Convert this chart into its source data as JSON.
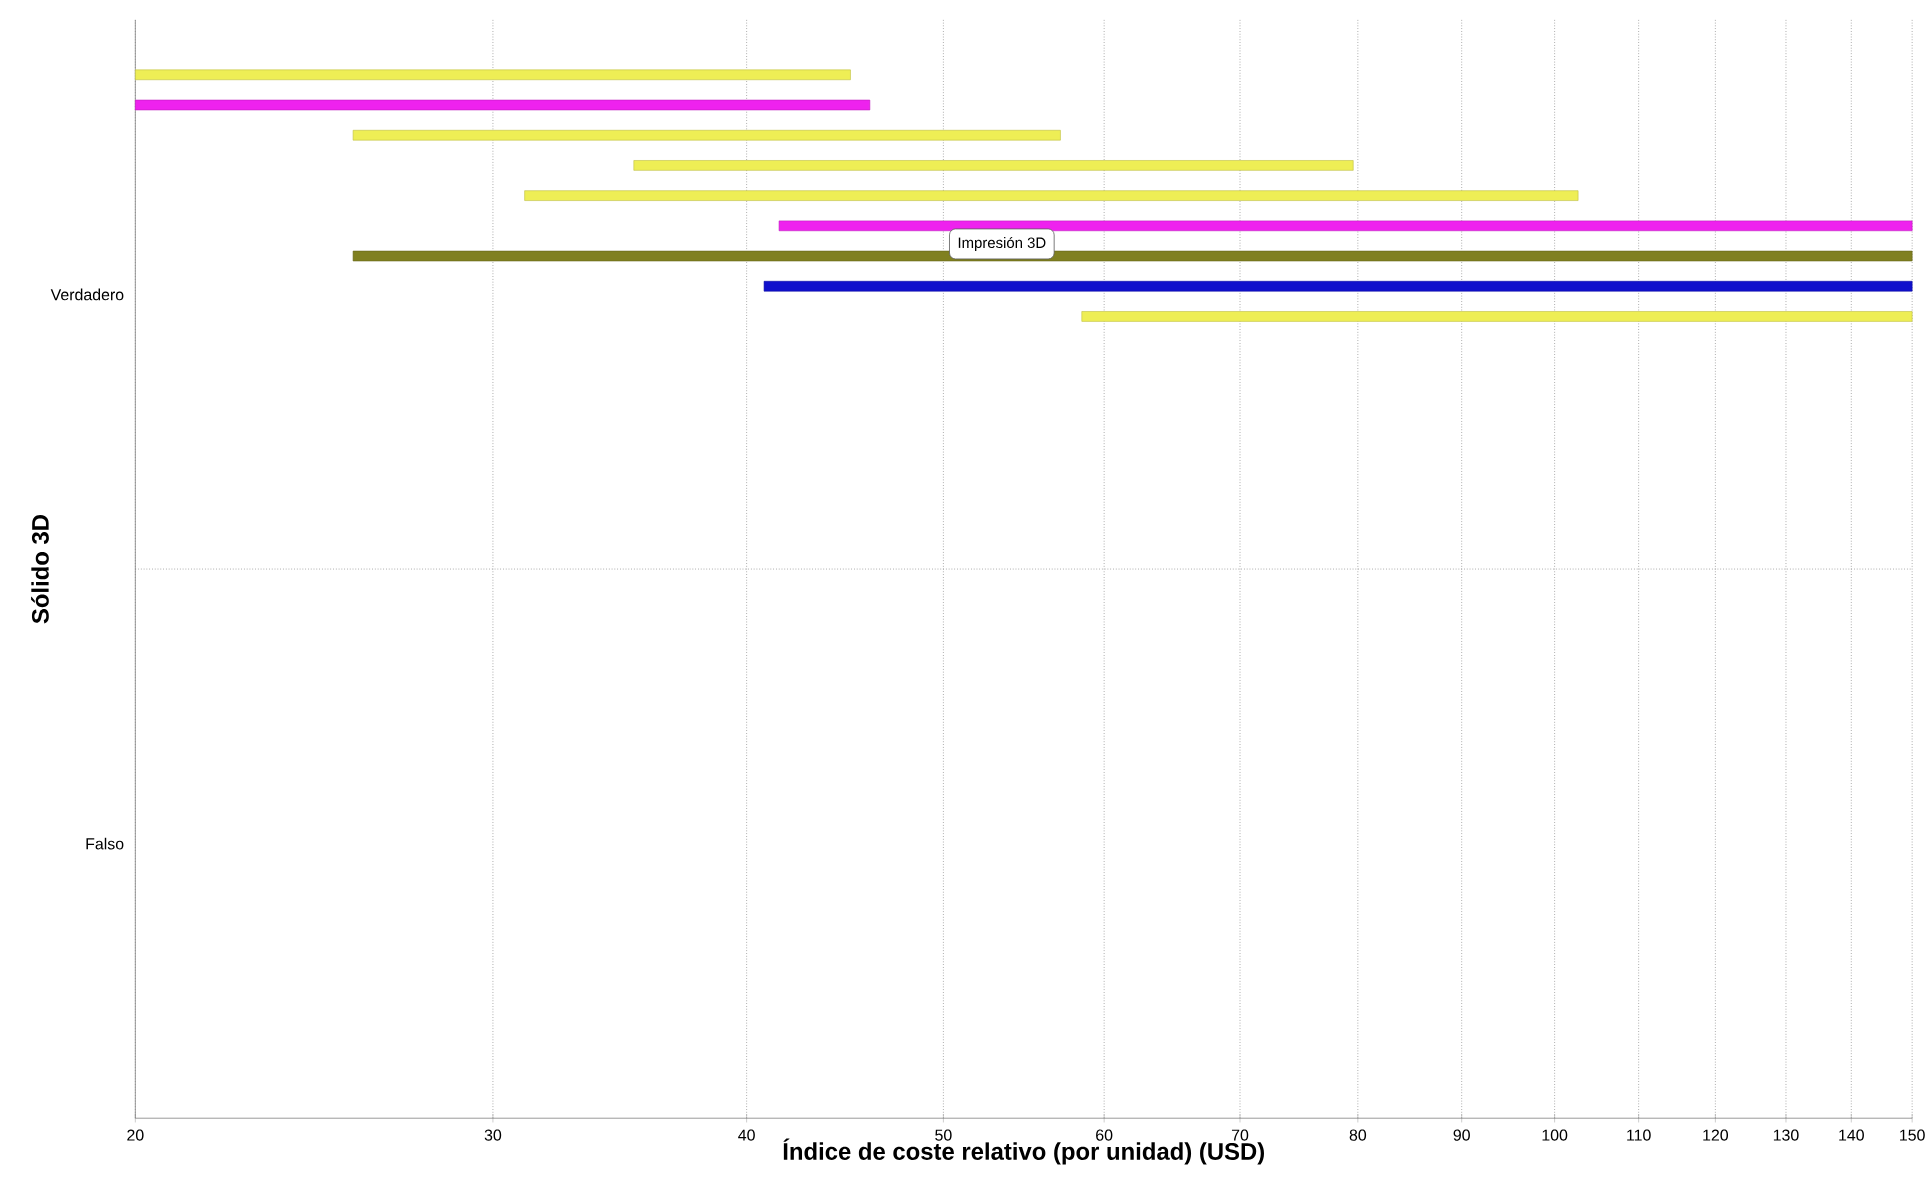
{
  "chart_data": {
    "type": "bar",
    "orientation": "horizontal",
    "xlabel": "Índice de coste relativo (por unidad) (USD)",
    "ylabel": "Sólido 3D",
    "categories": [
      "Verdadero",
      "Falso"
    ],
    "log": "x",
    "grid": true,
    "xlim": [
      20,
      150
    ],
    "xticks": [
      20,
      30,
      40,
      50,
      60,
      70,
      80,
      90,
      100,
      110,
      120,
      130,
      140,
      150
    ],
    "series": [
      {
        "color": "#eeee55",
        "values": [
          25,
          null
        ],
        "base": [
          20,
          null
        ]
      },
      {
        "color": "#ee22ee",
        "values": [
          26,
          null
        ],
        "base": [
          20,
          null
        ]
      },
      {
        "color": "#eeee55",
        "values": [
          31.5,
          null
        ],
        "base": [
          25.6,
          null
        ]
      },
      {
        "color": "#eeee55",
        "values": [
          44.4,
          null
        ],
        "base": [
          35.2,
          null
        ]
      },
      {
        "color": "#eeee55",
        "values": [
          71.6,
          null
        ],
        "base": [
          31.1,
          null
        ]
      },
      {
        "color": "#ee22ee",
        "values": [
          108.5,
          null
        ],
        "base": [
          41.5,
          null
        ]
      },
      {
        "color": "#808020",
        "values": [
          124.4,
          null
        ],
        "base": [
          25.6,
          null
        ]
      },
      {
        "color": "#1010cc",
        "values": [
          109.2,
          null
        ],
        "base": [
          40.8,
          null
        ]
      },
      {
        "color": "#eeee55",
        "values": [
          91.5,
          null
        ],
        "base": [
          58.5,
          null
        ]
      }
    ],
    "annotations": [
      "Impresión 3D"
    ]
  }
}
